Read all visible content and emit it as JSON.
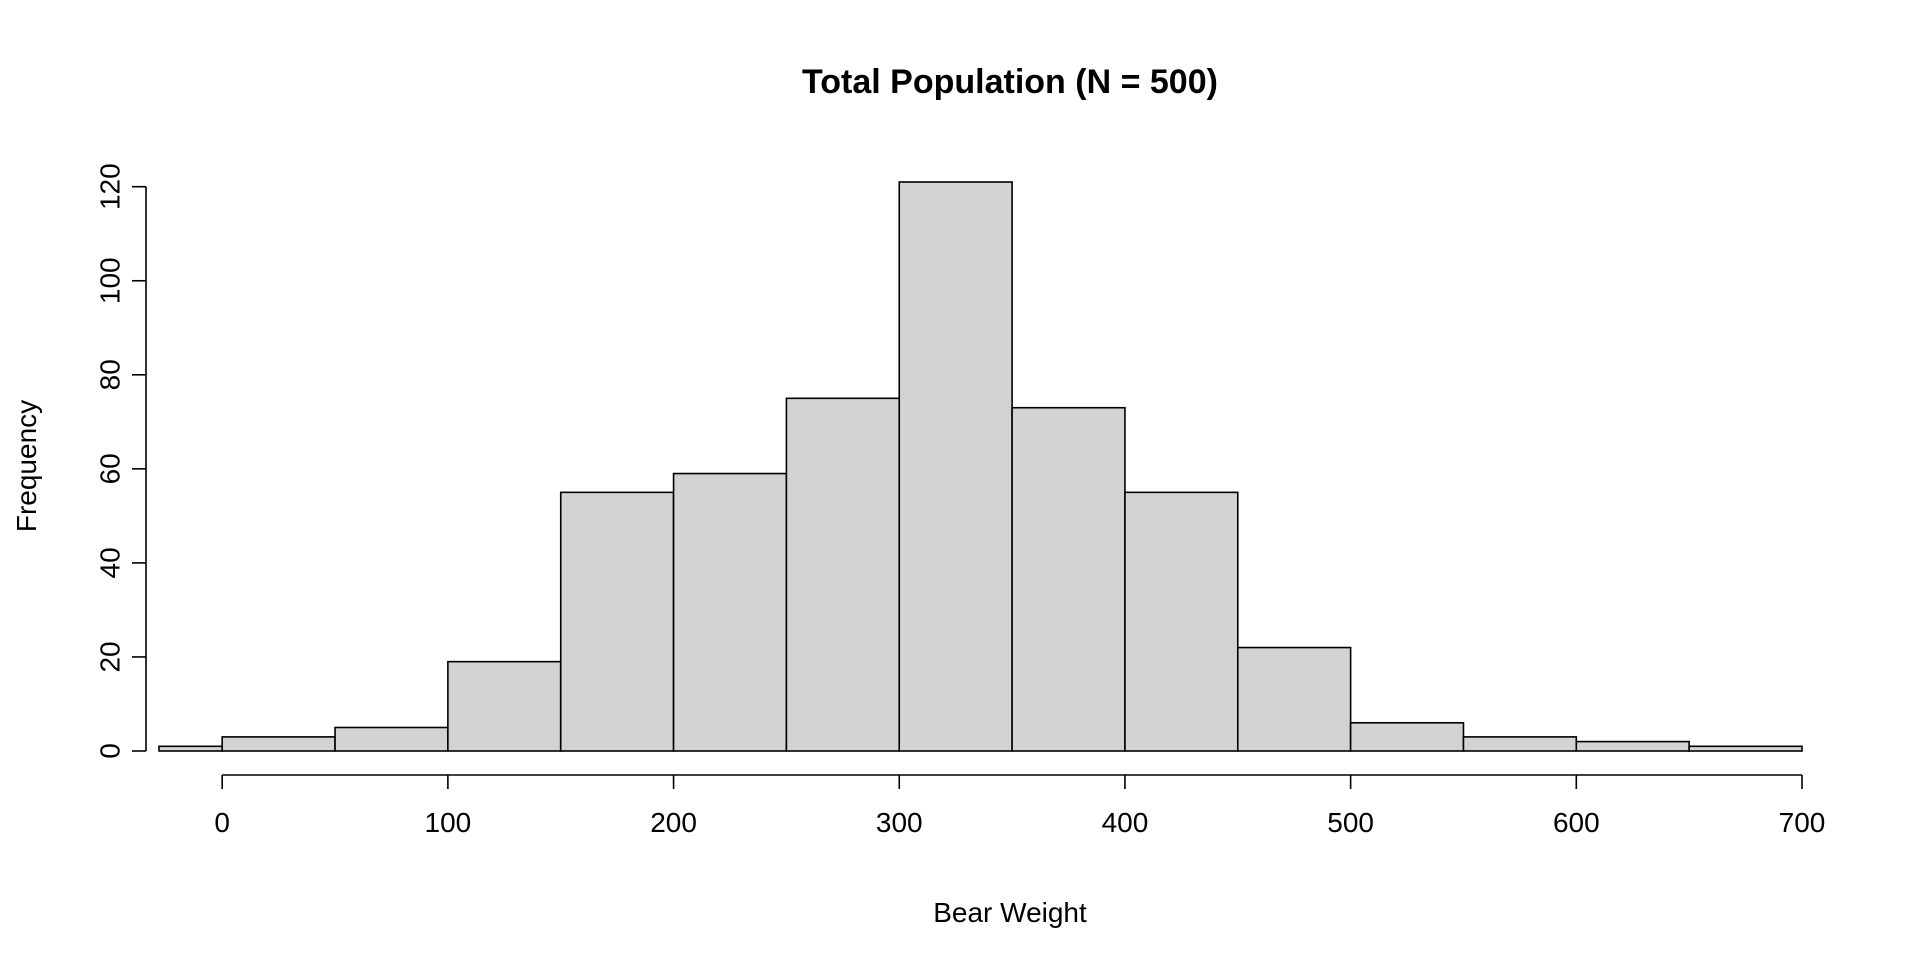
{
  "chart_data": {
    "type": "bar",
    "title": "Total Population (N = 500)",
    "xlabel": "Bear Weight",
    "ylabel": "Frequency",
    "bins": [
      {
        "x0": -50,
        "x1": 0,
        "count": 1
      },
      {
        "x0": 0,
        "x1": 50,
        "count": 3
      },
      {
        "x0": 50,
        "x1": 100,
        "count": 5
      },
      {
        "x0": 100,
        "x1": 150,
        "count": 19
      },
      {
        "x0": 150,
        "x1": 200,
        "count": 55
      },
      {
        "x0": 200,
        "x1": 250,
        "count": 59
      },
      {
        "x0": 250,
        "x1": 300,
        "count": 75
      },
      {
        "x0": 300,
        "x1": 350,
        "count": 121
      },
      {
        "x0": 350,
        "x1": 400,
        "count": 73
      },
      {
        "x0": 400,
        "x1": 450,
        "count": 55
      },
      {
        "x0": 450,
        "x1": 500,
        "count": 22
      },
      {
        "x0": 500,
        "x1": 550,
        "count": 6
      },
      {
        "x0": 550,
        "x1": 600,
        "count": 3
      },
      {
        "x0": 600,
        "x1": 650,
        "count": 2
      },
      {
        "x0": 650,
        "x1": 700,
        "count": 1
      }
    ],
    "x_ticks": [
      0,
      100,
      200,
      300,
      400,
      500,
      600,
      700
    ],
    "y_ticks": [
      0,
      20,
      40,
      60,
      80,
      100,
      120
    ],
    "xlim": [
      -28,
      700
    ],
    "ylim": [
      0,
      121
    ],
    "grid": false,
    "bar_fill": "#d3d3d3",
    "bar_stroke": "#000000"
  }
}
